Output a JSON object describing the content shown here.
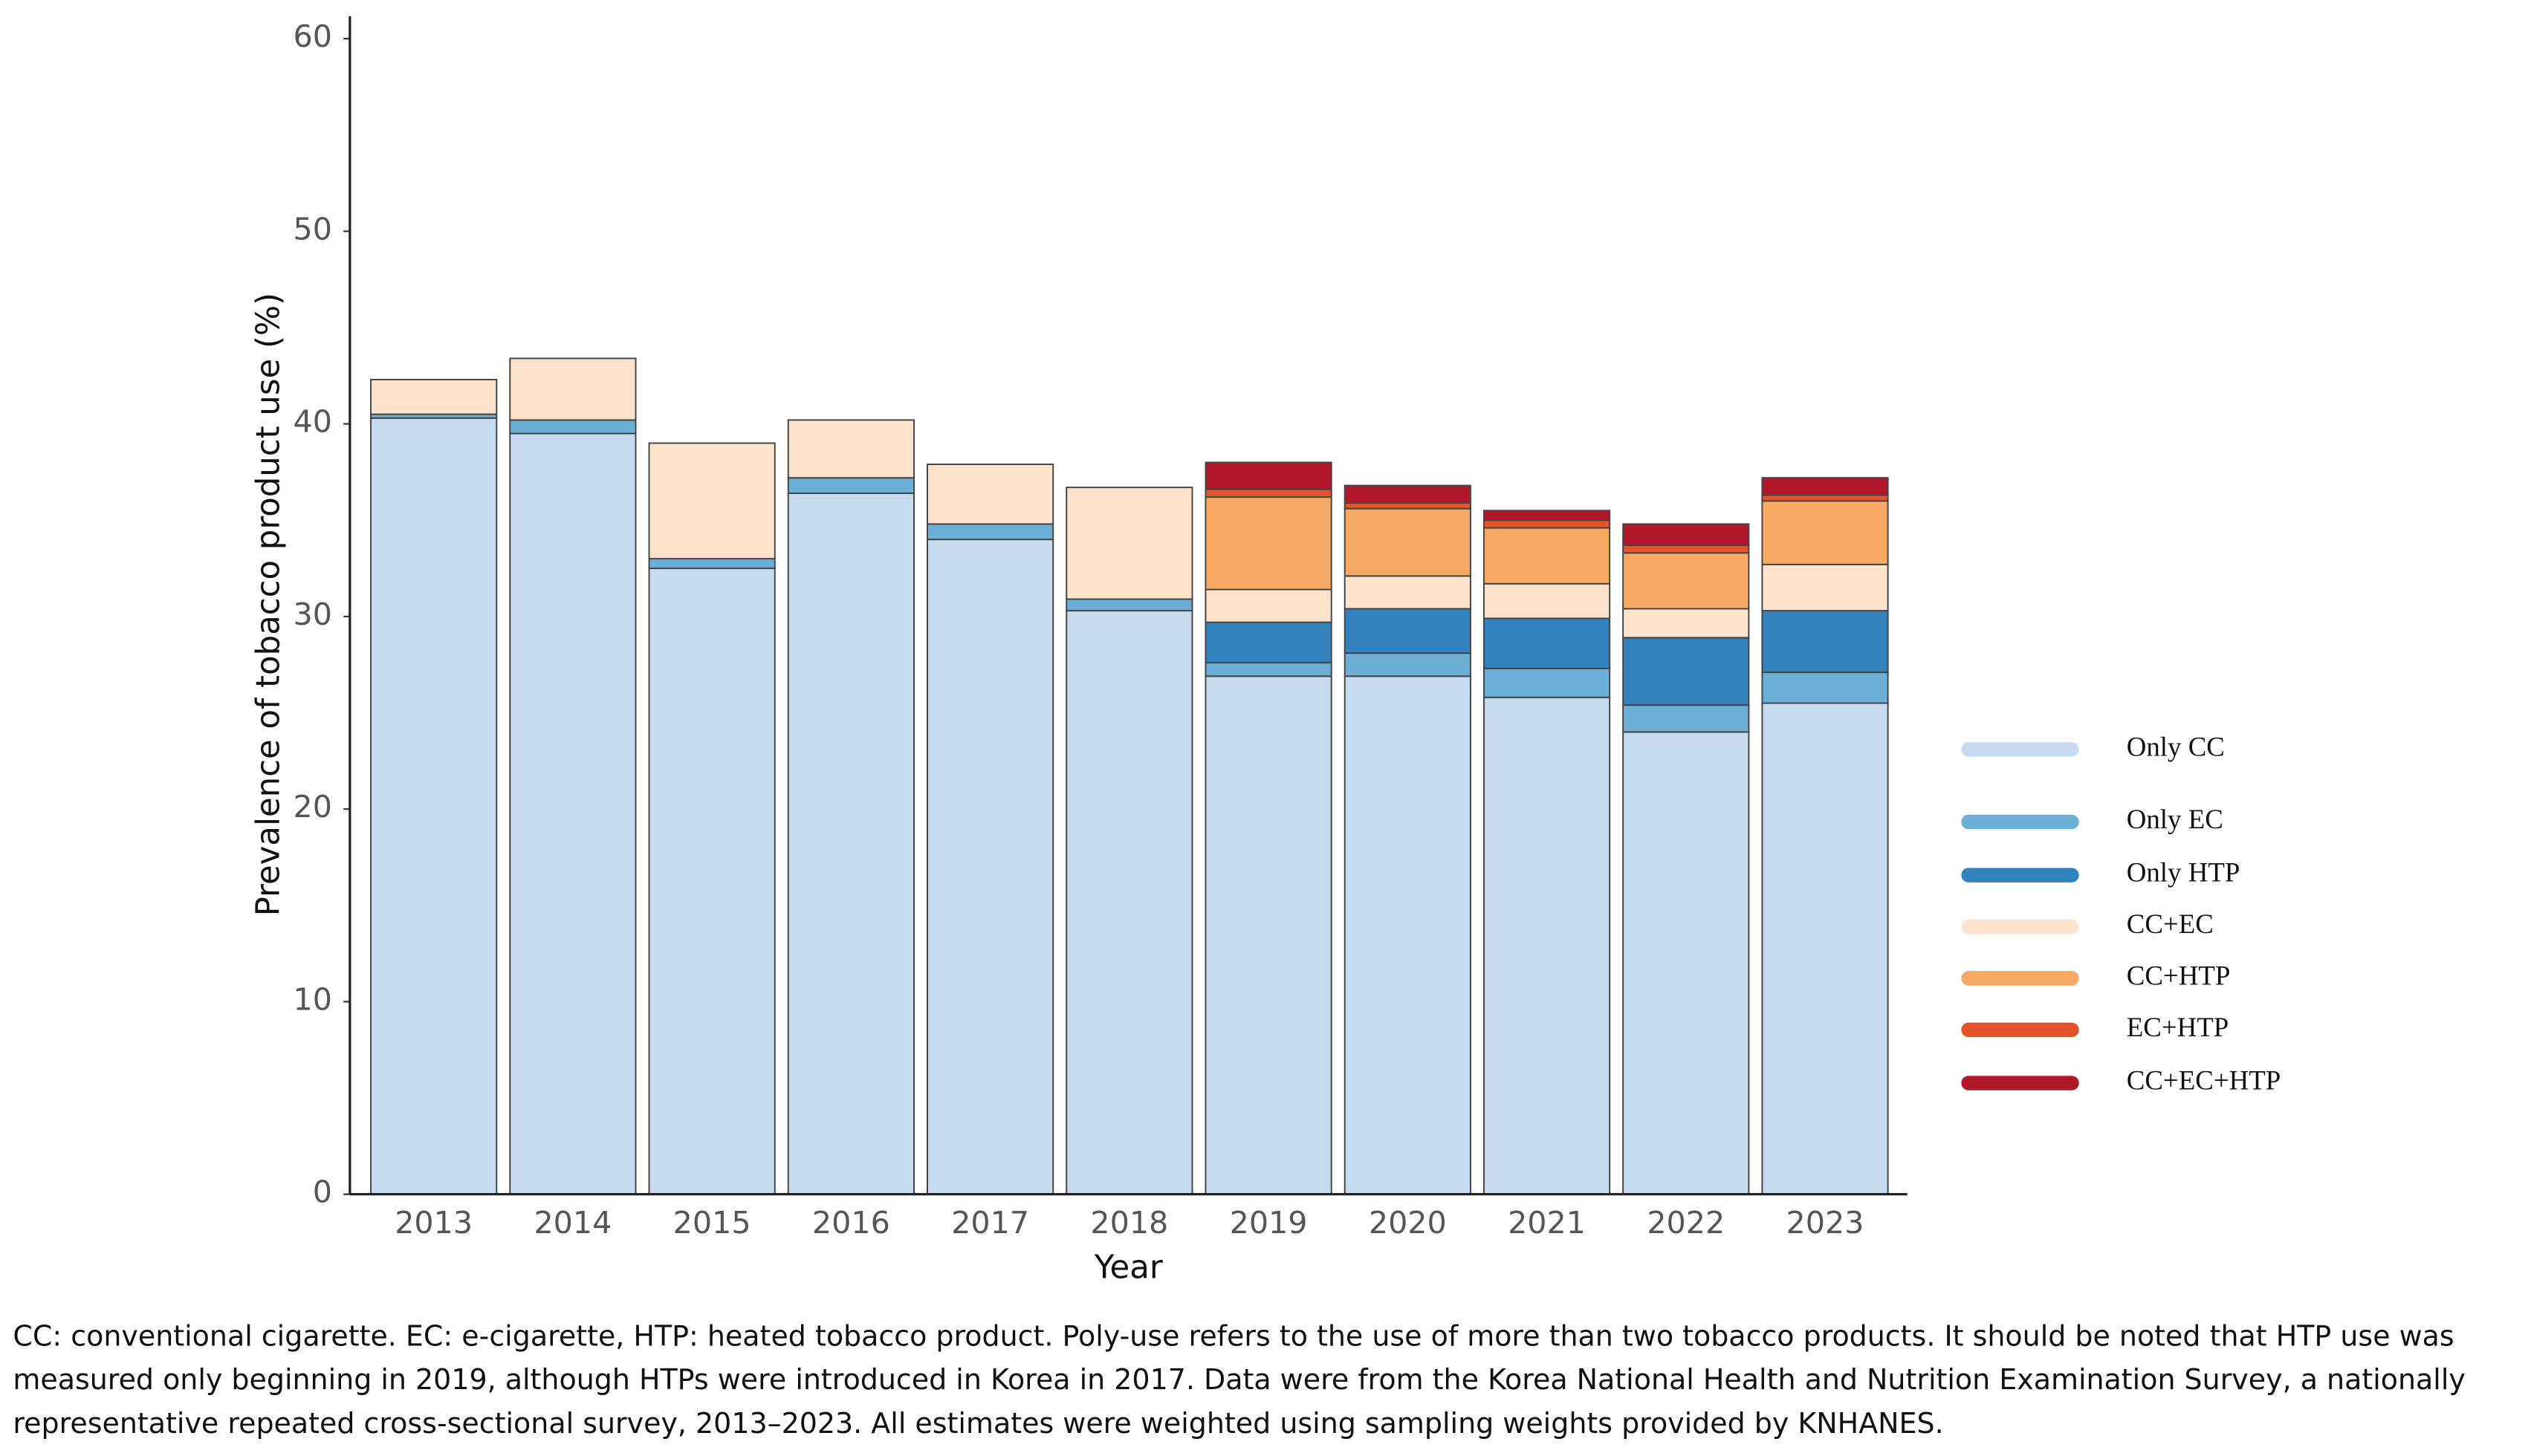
{
  "chart_data": {
    "type": "stacked_bar",
    "y_label": "Prevalence of tobacco product use (%)",
    "x_label": "Year",
    "categories": [
      "2013",
      "2014",
      "2015",
      "2016",
      "2017",
      "2018",
      "2019",
      "2020",
      "2021",
      "2022",
      "2023"
    ],
    "series": [
      {
        "name": "Only CC",
        "color": "#c6dbef",
        "values": [
          40.3,
          39.5,
          32.5,
          36.4,
          34.0,
          30.3,
          26.9,
          26.9,
          25.8,
          24.0,
          25.5
        ]
      },
      {
        "name": "Only EC",
        "color": "#6baed6",
        "values": [
          0.2,
          0.7,
          0.5,
          0.8,
          0.8,
          0.6,
          0.7,
          1.2,
          1.5,
          1.4,
          1.6
        ]
      },
      {
        "name": "Only HTP",
        "color": "#3182bd",
        "values": [
          null,
          null,
          null,
          null,
          null,
          null,
          2.1,
          2.3,
          2.6,
          3.5,
          3.2
        ]
      },
      {
        "name": "CC+EC",
        "color": "#fde3cc",
        "values": [
          1.8,
          3.2,
          6.0,
          3.0,
          3.1,
          5.8,
          1.7,
          1.7,
          1.8,
          1.5,
          2.4
        ]
      },
      {
        "name": "CC+HTP",
        "color": "#f8a964",
        "values": [
          null,
          null,
          null,
          null,
          null,
          null,
          4.8,
          3.5,
          2.9,
          2.9,
          3.3
        ]
      },
      {
        "name": "EC+HTP",
        "color": "#e5532a",
        "values": [
          null,
          null,
          null,
          null,
          null,
          null,
          0.4,
          0.3,
          0.4,
          0.4,
          0.3
        ]
      },
      {
        "name": "CC+EC+HTP",
        "color": "#b2182b",
        "values": [
          null,
          null,
          null,
          null,
          null,
          null,
          1.4,
          0.9,
          0.5,
          1.1,
          0.9
        ]
      }
    ],
    "ylim": [
      0,
      60
    ],
    "yticks": [
      0,
      10,
      20,
      30,
      40,
      50,
      60
    ],
    "legend": "right",
    "note": [
      "CC: conventional cigarette. EC: e-cigarette, HTP: heated tobacco product. Poly-use refers to the use of more than two tobacco products. It should be noted that HTP use was",
      "measured only beginning in 2019, although HTPs were introduced in Korea in 2017. Data were from the Korea National Health and Nutrition Examination Survey, a nationally",
      "representative repeated cross-sectional survey, 2013–2023. All estimates were weighted using sampling weights provided by KNHANES."
    ]
  }
}
